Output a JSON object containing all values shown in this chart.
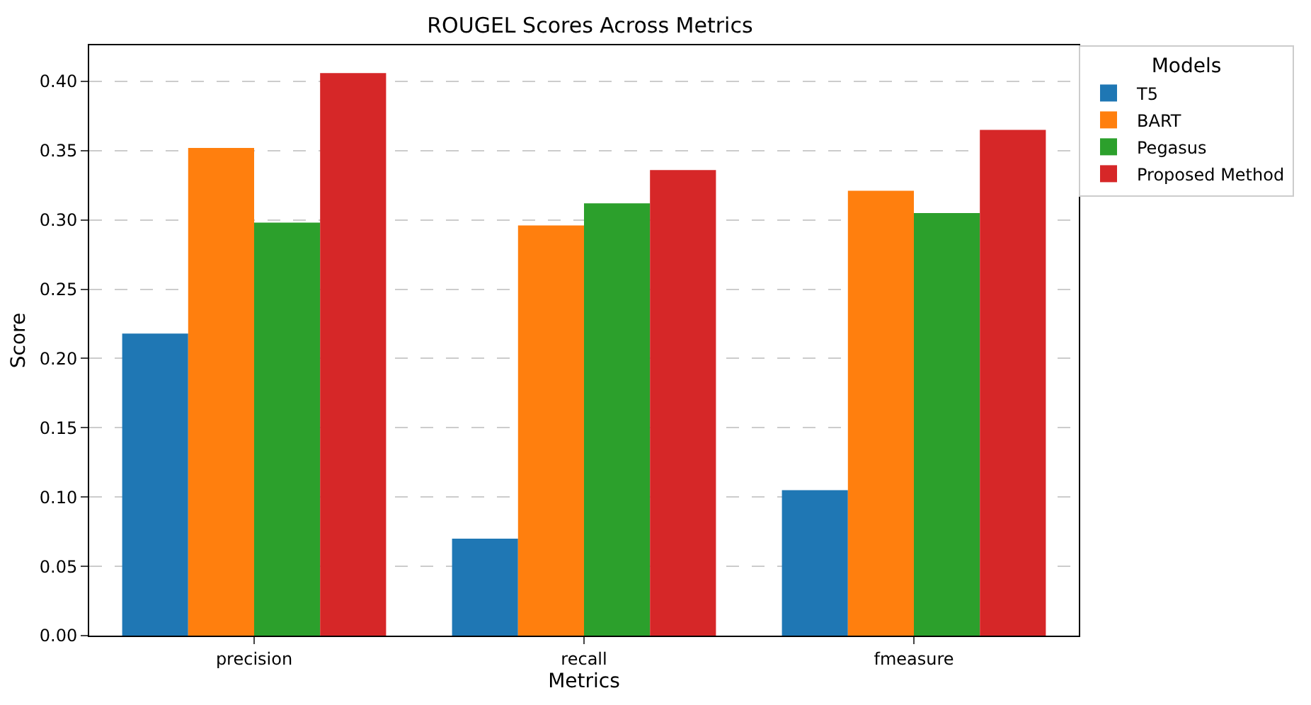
{
  "chart_data": {
    "type": "bar",
    "title": "ROUGEL Scores Across Metrics",
    "xlabel": "Metrics",
    "ylabel": "Score",
    "legend_title": "Models",
    "categories": [
      "precision",
      "recall",
      "fmeasure"
    ],
    "series": [
      {
        "name": "T5",
        "color": "#1f77b4",
        "values": [
          0.218,
          0.07,
          0.105
        ]
      },
      {
        "name": "BART",
        "color": "#ff7f0e",
        "values": [
          0.352,
          0.296,
          0.321
        ]
      },
      {
        "name": "Pegasus",
        "color": "#2ca02c",
        "values": [
          0.298,
          0.312,
          0.305
        ]
      },
      {
        "name": "Proposed Method",
        "color": "#d62728",
        "values": [
          0.406,
          0.336,
          0.365
        ]
      }
    ],
    "ylim": [
      0,
      0.426
    ],
    "yticks": [
      {
        "value": 0,
        "label": "0.00"
      },
      0.05,
      {
        "value": 0.1,
        "label": "0.10"
      },
      0.15,
      {
        "value": 0.2,
        "label": "0.20"
      },
      0.25,
      {
        "value": 0.3,
        "label": "0.30"
      },
      0.35,
      {
        "value": 0.4,
        "label": "0.40"
      }
    ],
    "grid": "y",
    "legend": "top right"
  }
}
